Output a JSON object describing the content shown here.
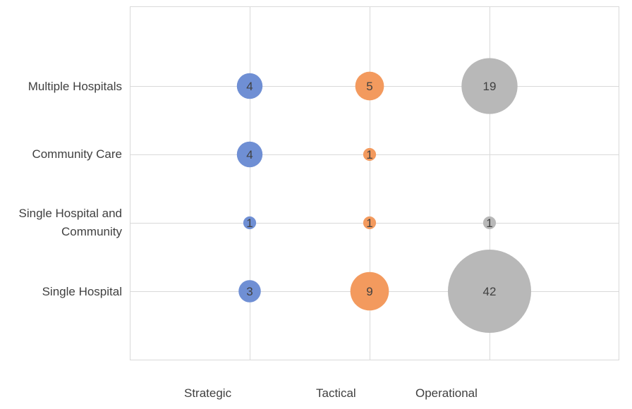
{
  "chart_data": {
    "type": "bubble",
    "y_categories": [
      "Multiple Hospitals",
      "Community Care",
      "Single Hospital and Community",
      "Single Hospital"
    ],
    "x_categories": [
      "Strategic",
      "Tactical",
      "Operational"
    ],
    "series": [
      {
        "name": "Strategic",
        "color": "#6f8fd4",
        "values": [
          4,
          4,
          1,
          3
        ]
      },
      {
        "name": "Tactical",
        "color": "#f39a5e",
        "values": [
          5,
          1,
          1,
          9
        ]
      },
      {
        "name": "Operational",
        "color": "#b8b8b8",
        "values": [
          19,
          null,
          1,
          42
        ]
      }
    ],
    "grid": true,
    "legend": "none"
  },
  "labels": {
    "y": [
      "Multiple Hospitals",
      "Community Care",
      "Single Hospital and",
      "Community",
      "Single Hospital"
    ],
    "x": [
      "Strategic",
      "Tactical",
      "Operational"
    ]
  }
}
